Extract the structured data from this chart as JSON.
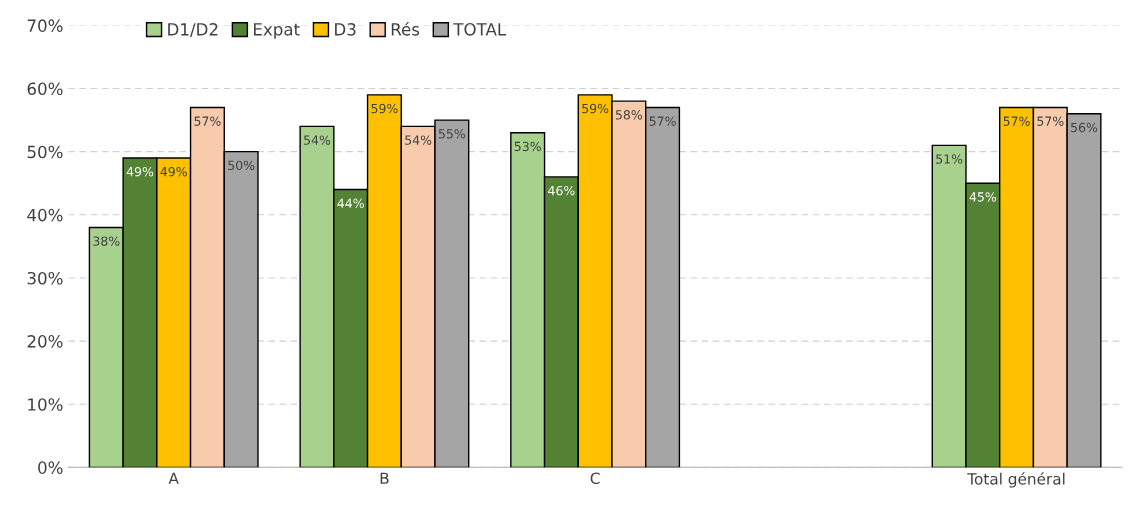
{
  "chart_data": {
    "type": "bar",
    "categories": [
      "A",
      "B",
      "C",
      null,
      "Total général"
    ],
    "series": [
      {
        "name": "D1/D2",
        "color": "#a9d18e",
        "values": [
          38,
          54,
          53,
          null,
          51
        ],
        "value_labels": [
          "38%",
          "54%",
          "53%",
          null,
          "51%"
        ]
      },
      {
        "name": "Expat",
        "color": "#548235",
        "values": [
          49,
          44,
          46,
          null,
          45
        ],
        "value_labels": [
          "49%",
          "44%",
          "46%",
          null,
          "45%"
        ]
      },
      {
        "name": "D3",
        "color": "#ffc000",
        "values": [
          49,
          59,
          59,
          null,
          57
        ],
        "value_labels": [
          "49%",
          "59%",
          "59%",
          null,
          "57%"
        ]
      },
      {
        "name": "Rés",
        "color": "#f8cbad",
        "values": [
          57,
          54,
          58,
          null,
          57
        ],
        "value_labels": [
          "57%",
          "54%",
          "58%",
          null,
          "57%"
        ]
      },
      {
        "name": "TOTAL",
        "color": "#a5a5a5",
        "values": [
          50,
          55,
          57,
          null,
          56
        ],
        "value_labels": [
          "50%",
          "55%",
          "57%",
          null,
          "56%"
        ]
      }
    ],
    "ylim": [
      0,
      70
    ],
    "yticks": [
      {
        "value": 0,
        "label": "0%"
      },
      {
        "value": 10,
        "label": "10%"
      },
      {
        "value": 20,
        "label": "20%"
      },
      {
        "value": 30,
        "label": "30%"
      },
      {
        "value": 40,
        "label": "40%"
      },
      {
        "value": 50,
        "label": "50%"
      },
      {
        "value": 60,
        "label": "60%"
      },
      {
        "value": 70,
        "label": "70%"
      }
    ],
    "grid": "y",
    "legend": "top left"
  }
}
